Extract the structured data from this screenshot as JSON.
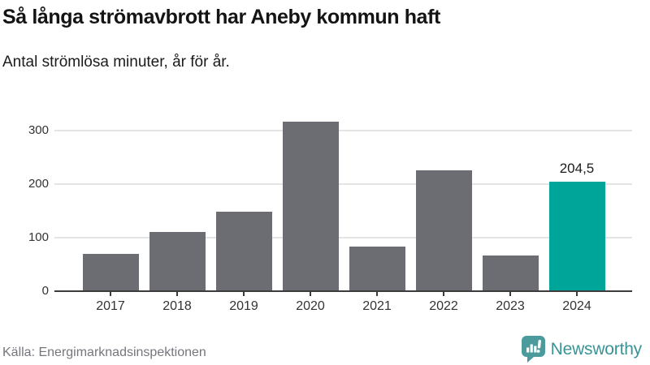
{
  "header": {
    "title": "Så långa strömavbrott har Aneby kommun haft",
    "subtitle": "Antal strömlösa minuter, år för år."
  },
  "footer": {
    "source": "Källa: Energimarknadsinspektionen",
    "brand": {
      "name": "Newsworthy",
      "icon": "bar-chart-speech-bubble",
      "icon_color": "#4b9b9d",
      "text_color": "#3a9496"
    }
  },
  "colors": {
    "bar": "#6c6c73",
    "highlight": "#00a59a",
    "grid": "#e4e4e4",
    "axis": "#3c3c3c",
    "tick_text": "#333333"
  },
  "chart_data": {
    "type": "bar",
    "title": "Så långa strömavbrott har Aneby kommun haft",
    "subtitle": "Antal strömlösa minuter, år för år.",
    "categories": [
      "2017",
      "2018",
      "2019",
      "2020",
      "2021",
      "2022",
      "2023",
      "2024"
    ],
    "values": [
      69,
      111,
      148,
      316,
      83,
      225,
      66,
      204.5
    ],
    "highlight_index": 7,
    "value_label": {
      "index": 7,
      "text": "204,5"
    },
    "xlabel": "",
    "ylabel": "",
    "yticks": [
      0,
      100,
      200,
      300
    ],
    "ylim": [
      0,
      331
    ],
    "grid": true,
    "legend": "none"
  }
}
